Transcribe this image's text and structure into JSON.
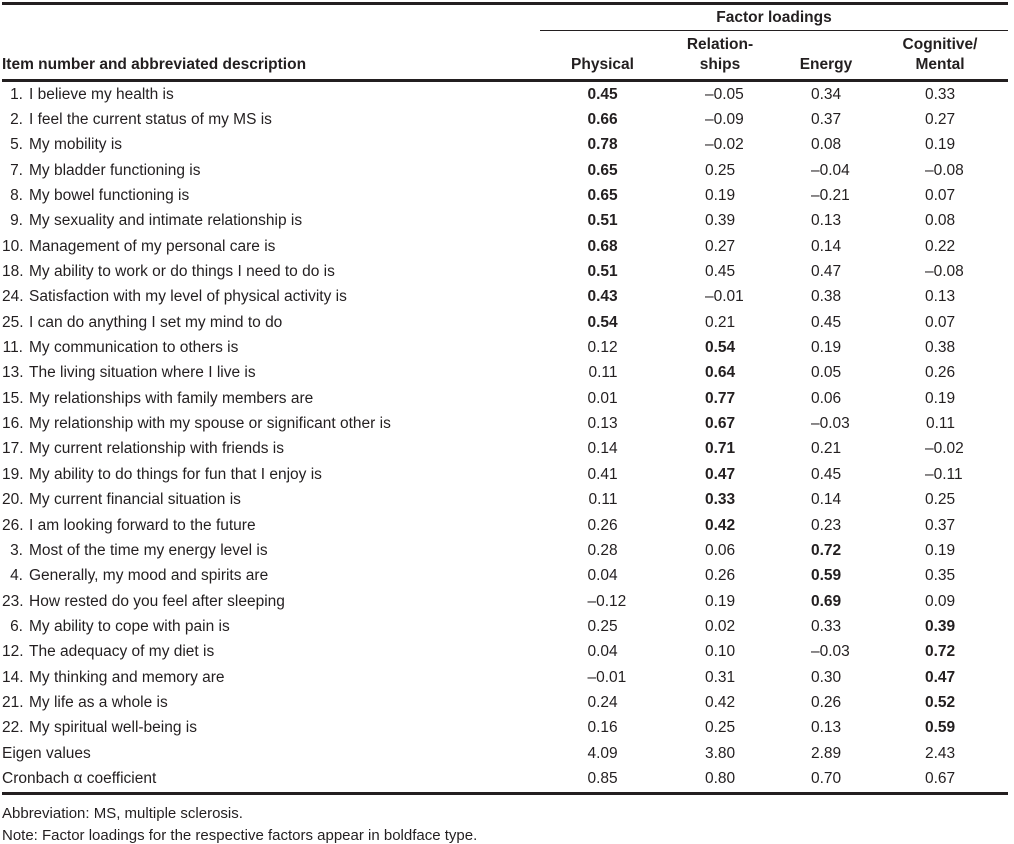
{
  "table": {
    "spanner": "Factor loadings",
    "item_header": "Item number and abbreviated description",
    "columns": [
      "Physical",
      "Relation-\nships",
      "Energy",
      "Cognitive/\nMental"
    ],
    "rows": [
      {
        "num": "1.",
        "desc": "I believe my health is",
        "values": [
          "0.45",
          "–0.05",
          "0.34",
          "0.33"
        ],
        "bold": 0
      },
      {
        "num": "2.",
        "desc": "I feel the current status of my MS is",
        "values": [
          "0.66",
          "–0.09",
          "0.37",
          "0.27"
        ],
        "bold": 0
      },
      {
        "num": "5.",
        "desc": "My mobility is",
        "values": [
          "0.78",
          "–0.02",
          "0.08",
          "0.19"
        ],
        "bold": 0
      },
      {
        "num": "7.",
        "desc": "My bladder functioning is",
        "values": [
          "0.65",
          "0.25",
          "–0.04",
          "–0.08"
        ],
        "bold": 0
      },
      {
        "num": "8.",
        "desc": "My bowel functioning is",
        "values": [
          "0.65",
          "0.19",
          "–0.21",
          "0.07"
        ],
        "bold": 0
      },
      {
        "num": "9.",
        "desc": "My sexuality and intimate relationship is",
        "values": [
          "0.51",
          "0.39",
          "0.13",
          "0.08"
        ],
        "bold": 0
      },
      {
        "num": "10.",
        "desc": "Management of my personal care is",
        "values": [
          "0.68",
          "0.27",
          "0.14",
          "0.22"
        ],
        "bold": 0
      },
      {
        "num": "18.",
        "desc": "My ability to work or do things I need to do is",
        "values": [
          "0.51",
          "0.45",
          "0.47",
          "–0.08"
        ],
        "bold": 0
      },
      {
        "num": "24.",
        "desc": "Satisfaction with my level of physical activity is",
        "values": [
          "0.43",
          "–0.01",
          "0.38",
          "0.13"
        ],
        "bold": 0
      },
      {
        "num": "25.",
        "desc": "I can do anything I set my mind to do",
        "values": [
          "0.54",
          "0.21",
          "0.45",
          "0.07"
        ],
        "bold": 0
      },
      {
        "num": "11.",
        "desc": "My communication to others is",
        "values": [
          "0.12",
          "0.54",
          "0.19",
          "0.38"
        ],
        "bold": 1
      },
      {
        "num": "13.",
        "desc": "The living situation where I live is",
        "values": [
          "0.11",
          "0.64",
          "0.05",
          "0.26"
        ],
        "bold": 1
      },
      {
        "num": "15.",
        "desc": "My relationships with family members are",
        "values": [
          "0.01",
          "0.77",
          "0.06",
          "0.19"
        ],
        "bold": 1
      },
      {
        "num": "16.",
        "desc": "My relationship with my spouse or significant other is",
        "values": [
          "0.13",
          "0.67",
          "–0.03",
          "0.11"
        ],
        "bold": 1
      },
      {
        "num": "17.",
        "desc": "My current relationship with friends is",
        "values": [
          "0.14",
          "0.71",
          "0.21",
          "–0.02"
        ],
        "bold": 1
      },
      {
        "num": "19.",
        "desc": "My ability to do things for fun that I enjoy is",
        "values": [
          "0.41",
          "0.47",
          "0.45",
          "–0.11"
        ],
        "bold": 1
      },
      {
        "num": "20.",
        "desc": "My current financial situation is",
        "values": [
          "0.11",
          "0.33",
          "0.14",
          "0.25"
        ],
        "bold": 1
      },
      {
        "num": "26.",
        "desc": "I am looking forward to the future",
        "values": [
          "0.26",
          "0.42",
          "0.23",
          "0.37"
        ],
        "bold": 1
      },
      {
        "num": "3.",
        "desc": "Most of the time my energy level is",
        "values": [
          "0.28",
          "0.06",
          "0.72",
          "0.19"
        ],
        "bold": 2
      },
      {
        "num": "4.",
        "desc": "Generally, my mood and spirits are",
        "values": [
          "0.04",
          "0.26",
          "0.59",
          "0.35"
        ],
        "bold": 2
      },
      {
        "num": "23.",
        "desc": "How rested do you feel after sleeping",
        "values": [
          "–0.12",
          "0.19",
          "0.69",
          "0.09"
        ],
        "bold": 2
      },
      {
        "num": "6.",
        "desc": "My ability to cope with pain is",
        "values": [
          "0.25",
          "0.02",
          "0.33",
          "0.39"
        ],
        "bold": 3
      },
      {
        "num": "12.",
        "desc": "The adequacy of my diet is",
        "values": [
          "0.04",
          "0.10",
          "–0.03",
          "0.72"
        ],
        "bold": 3
      },
      {
        "num": "14.",
        "desc": "My thinking and memory are",
        "values": [
          "–0.01",
          "0.31",
          "0.30",
          "0.47"
        ],
        "bold": 3
      },
      {
        "num": "21.",
        "desc": "My life as a whole is",
        "values": [
          "0.24",
          "0.42",
          "0.26",
          "0.52"
        ],
        "bold": 3
      },
      {
        "num": "22.",
        "desc": "My spiritual well-being is",
        "values": [
          "0.16",
          "0.25",
          "0.13",
          "0.59"
        ],
        "bold": 3
      },
      {
        "num": "",
        "desc": "Eigen values",
        "values": [
          "4.09",
          "3.80",
          "2.89",
          "2.43"
        ],
        "bold": null
      },
      {
        "num": "",
        "desc": "Cronbach α coefficient",
        "values": [
          "0.85",
          "0.80",
          "0.70",
          "0.67"
        ],
        "bold": null
      }
    ]
  },
  "notes": {
    "abbreviation": "Abbreviation: MS, multiple sclerosis.",
    "note": "Note: Factor loadings for the respective factors appear in boldface type."
  }
}
